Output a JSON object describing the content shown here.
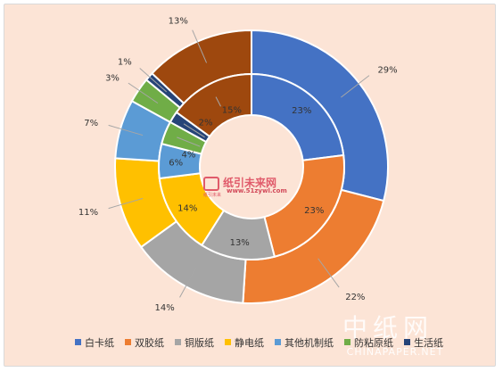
{
  "chart_data": {
    "type": "pie",
    "variant": "double-donut",
    "categories": [
      "白卡纸",
      "双胶纸",
      "铜版纸",
      "静电纸",
      "其他机制纸",
      "防粘原纸",
      "生活纸"
    ],
    "colors": [
      "#4472c4",
      "#ed7d31",
      "#a5a5a5",
      "#ffc000",
      "#5b9bd5",
      "#70ad47",
      "#264478"
    ],
    "series": [
      {
        "ring": "outer",
        "values": [
          29,
          22,
          14,
          11,
          7,
          3,
          1
        ],
        "value_labels": [
          "29%",
          "22%",
          "14%",
          "11%",
          "7%",
          "3%",
          "1%"
        ]
      },
      {
        "ring": "inner",
        "values": [
          23,
          23,
          13,
          14,
          6,
          4,
          2
        ],
        "value_labels": [
          "23%",
          "23%",
          "13%",
          "14%",
          "6%",
          "4%",
          "2%"
        ]
      }
    ],
    "remainder_color": "#9e480e",
    "outer_remainder_label": "13%",
    "inner_remainder_label": "15%",
    "legend_position": "bottom"
  },
  "watermark": {
    "site_name": "中纸网",
    "site_url": "CHINAPAPER.NET",
    "logo_name": "纸引未来网",
    "logo_url": "www.51zywl.com",
    "logo_sub": "纸引未来"
  }
}
